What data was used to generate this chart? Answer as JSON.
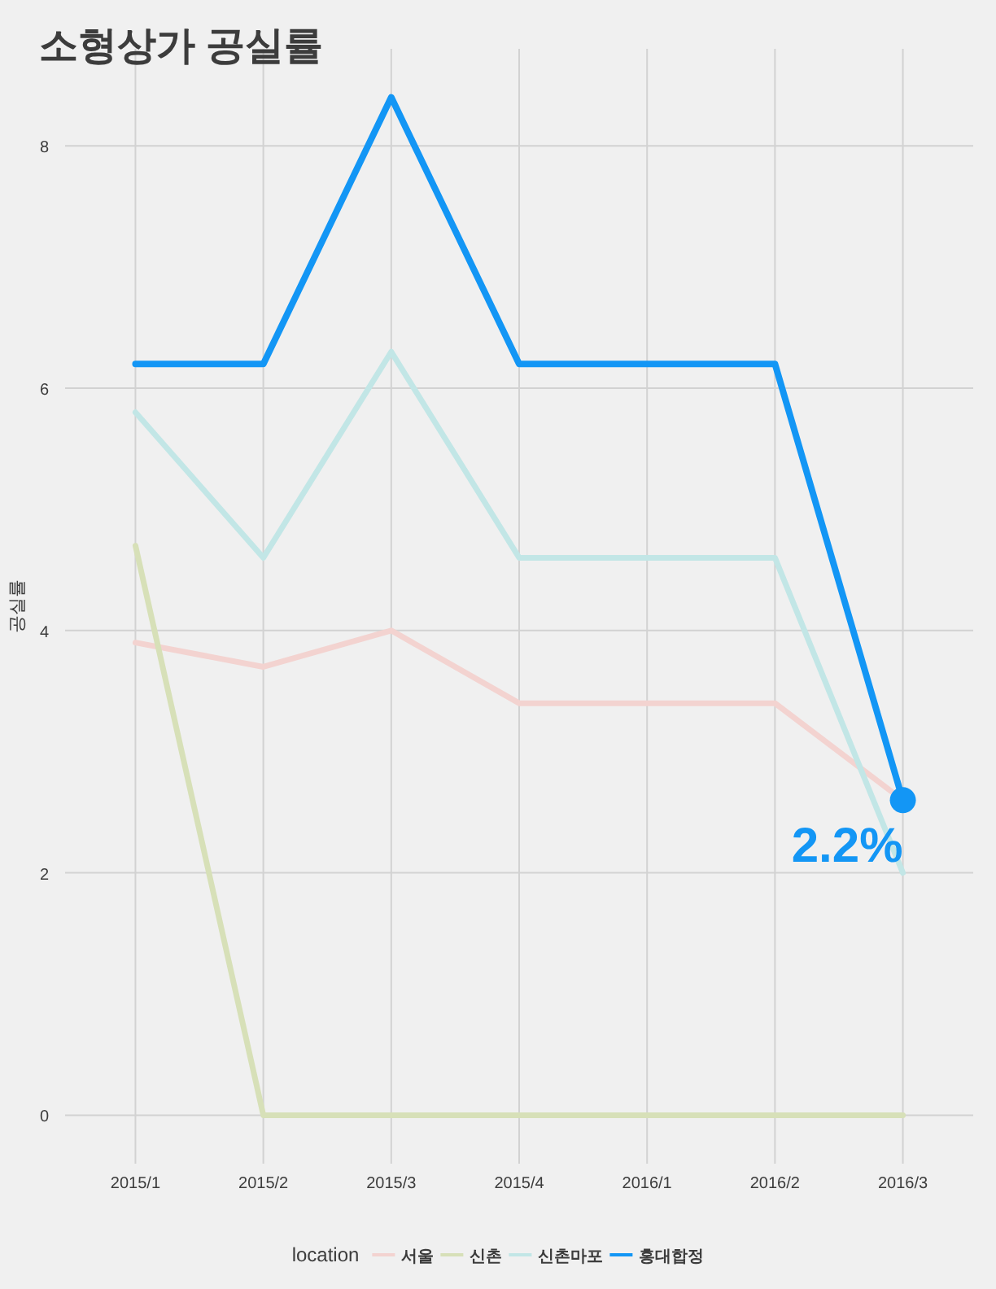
{
  "chart_data": {
    "type": "line",
    "title": "소형상가 공실률",
    "ylabel": "공실률",
    "legend_title": "location",
    "categories": [
      "2015/1",
      "2015/2",
      "2015/3",
      "2015/4",
      "2016/1",
      "2016/2",
      "2016/3"
    ],
    "series": [
      {
        "name": "서울",
        "color": "#f3d3d0",
        "values": [
          3.9,
          3.7,
          4.0,
          3.4,
          3.4,
          3.4,
          2.6
        ]
      },
      {
        "name": "신촌",
        "color": "#d7e0b8",
        "values": [
          4.7,
          0,
          0,
          0,
          0,
          0,
          0
        ]
      },
      {
        "name": "신촌마포",
        "color": "#c2e6e6",
        "values": [
          5.8,
          4.6,
          6.3,
          4.6,
          4.6,
          4.6,
          2.0
        ]
      },
      {
        "name": "홍대합정",
        "color": "#1396f5",
        "values": [
          6.2,
          6.2,
          8.4,
          6.2,
          6.2,
          6.2,
          2.6
        ]
      }
    ],
    "annotations": [
      {
        "text": "2.2%",
        "x": "2016/3",
        "y": 2.6
      }
    ],
    "ylim": [
      -0.4,
      8.8
    ],
    "yticks": [
      0,
      2,
      4,
      6,
      8
    ],
    "grid": true,
    "legend": "bottom",
    "marker": "none",
    "line_style": "solid"
  }
}
